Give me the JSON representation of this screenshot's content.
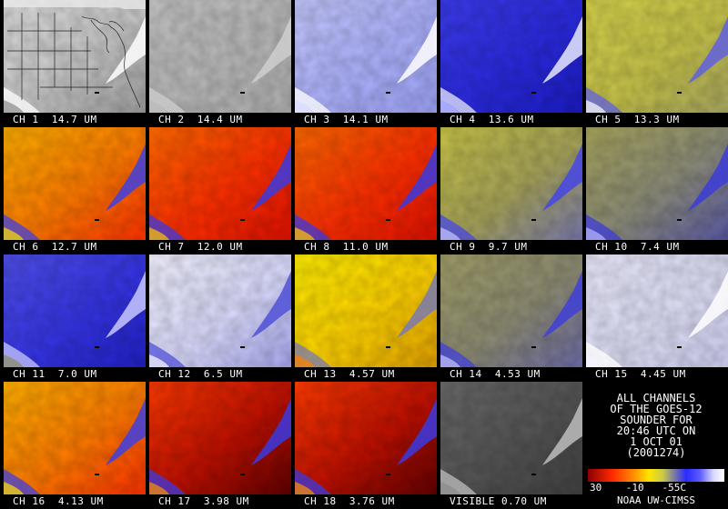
{
  "panels": [
    {
      "id": "ch1",
      "label": "CH 1  14.7 UM",
      "style": "map"
    },
    {
      "id": "ch2",
      "label": "CH 2  14.4 UM",
      "style": "gray"
    },
    {
      "id": "ch3",
      "label": "CH 3  14.1 UM",
      "style": "pale-blue"
    },
    {
      "id": "ch4",
      "label": "CH 4  13.6 UM",
      "style": "blue"
    },
    {
      "id": "ch5",
      "label": "CH 5  13.3 UM",
      "style": "olive"
    },
    {
      "id": "ch6",
      "label": "CH 6  12.7 UM",
      "style": "warm"
    },
    {
      "id": "ch7",
      "label": "CH 7  12.0 UM",
      "style": "red"
    },
    {
      "id": "ch8",
      "label": "CH 8  11.0 UM",
      "style": "red"
    },
    {
      "id": "ch9",
      "label": "CH 9  9.7 UM",
      "style": "olive-blue"
    },
    {
      "id": "ch10",
      "label": "CH 10  7.4 UM",
      "style": "slate"
    },
    {
      "id": "ch11",
      "label": "CH 11  7.0 UM",
      "style": "blue-dark"
    },
    {
      "id": "ch12",
      "label": "CH 12  6.5 UM",
      "style": "white-blue"
    },
    {
      "id": "ch13",
      "label": "CH 13  4.57 UM",
      "style": "yellow"
    },
    {
      "id": "ch14",
      "label": "CH 14  4.53 UM",
      "style": "olive-gray"
    },
    {
      "id": "ch15",
      "label": "CH 15  4.45 UM",
      "style": "very-pale"
    },
    {
      "id": "ch16",
      "label": "CH 16  4.13 UM",
      "style": "warm"
    },
    {
      "id": "ch17",
      "label": "CH 17  3.98 UM",
      "style": "deep-red"
    },
    {
      "id": "ch18",
      "label": "CH 18  3.76 UM",
      "style": "deep-red"
    },
    {
      "id": "vis",
      "label": "VISIBLE 0.70 UM",
      "style": "dark-gray"
    }
  ],
  "info": {
    "lines": [
      "ALL CHANNELS",
      "OF THE GOES-12",
      "SOUNDER FOR",
      "20:46 UTC ON",
      "1 OCT 01",
      "(2001274)"
    ],
    "scale_label": "30    -10   -55C",
    "credit": "NOAA UW-CIMSS"
  }
}
